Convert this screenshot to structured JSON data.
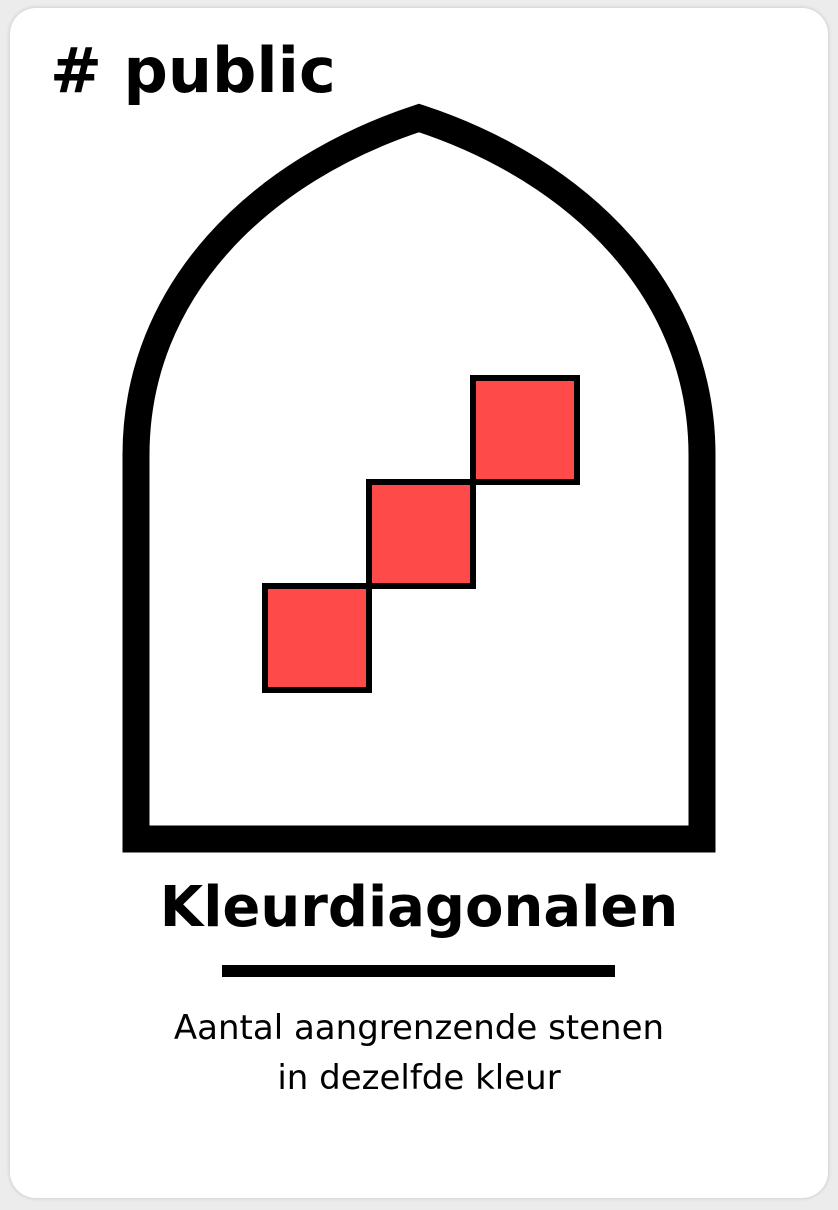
{
  "card": {
    "tag": "# public",
    "title": "Kleurdiagonalen",
    "description_lines": [
      "Aantal aangrenzende stenen",
      "in dezelfde kleur"
    ]
  },
  "icons": {
    "window": "gothic-arch-window-icon",
    "tiles": "diagonal-tiles-icon"
  },
  "colors": {
    "tile_fill": "#ff4a4a",
    "outline": "#000000",
    "card_background": "#ffffff"
  },
  "pattern": {
    "tile_count": 3,
    "direction": "diagonal"
  }
}
